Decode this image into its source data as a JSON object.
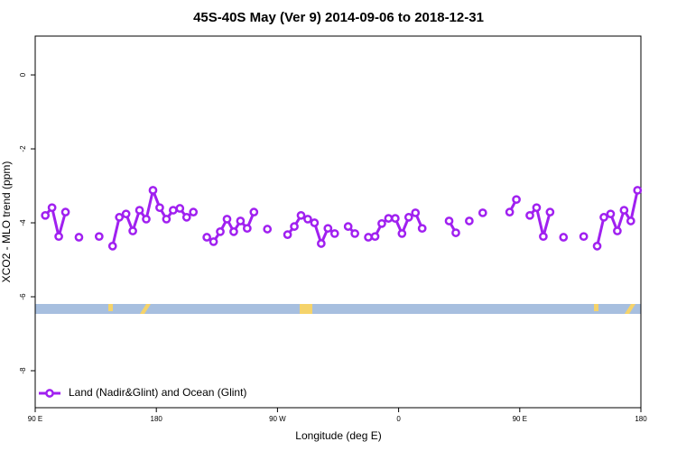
{
  "chart_data": {
    "type": "line",
    "title": "45S-40S May (Ver 9)   2014-09-06 to 2018-12-31",
    "x_label": "Longitude (deg E)",
    "y_label": "XCO2 - MLO trend (ppm)",
    "x": [
      92.5,
      97.5,
      102.5,
      107.5,
      112.5,
      117.5,
      122.5,
      127.5,
      132.5,
      137.5,
      142.5,
      147.5,
      152.5,
      157.5,
      162.5,
      167.5,
      172.5,
      177.5,
      182.5,
      187.5,
      192.5,
      197.5,
      202.5,
      207.5,
      212.5,
      217.5,
      222.5,
      227.5,
      232.5,
      237.5,
      242.5,
      247.5,
      252.5,
      257.5,
      262.5,
      267.5,
      272.5,
      277.5,
      282.5,
      287.5,
      292.5,
      297.5,
      302.5,
      307.5,
      312.5,
      317.5,
      322.5,
      327.5,
      332.5,
      337.5,
      342.5,
      347.5,
      352.5,
      357.5,
      362.5,
      367.5,
      372.5,
      377.5,
      382.5,
      387.5,
      392.5,
      397.5,
      402.5,
      407.5,
      412.5,
      417.5,
      422.5,
      427.5,
      432.5,
      437.5,
      442.5,
      447.5,
      452.5,
      457.5,
      462.5,
      467.5,
      472.5,
      477.5,
      482.5,
      487.5,
      492.5,
      497.5,
      502.5,
      507.5,
      512.5,
      517.5,
      522.5,
      527.5,
      532.5,
      537.5
    ],
    "series": [
      {
        "name": "Land (Nadir&Glint) and Ocean (Glint)",
        "color": "#a020f0",
        "values": [
          null,
          -3.8,
          -3.59,
          -4.37,
          -3.71,
          null,
          -4.39,
          null,
          null,
          -4.37,
          null,
          -4.63,
          -3.85,
          -3.76,
          -4.22,
          -3.66,
          -3.9,
          -3.12,
          -3.59,
          -3.9,
          -3.66,
          -3.61,
          -3.85,
          -3.71,
          null,
          -4.39,
          -4.51,
          -4.24,
          -3.9,
          -4.24,
          -3.95,
          -4.15,
          -3.71,
          null,
          -4.17,
          null,
          null,
          -4.32,
          -4.1,
          -3.8,
          -3.9,
          -4.0,
          -4.56,
          -4.15,
          -4.29,
          null,
          -4.1,
          -4.29,
          null,
          -4.39,
          -4.37,
          -4.02,
          -3.88,
          -3.88,
          -4.29,
          -3.85,
          -3.73,
          -4.15,
          null,
          null,
          null,
          -3.95,
          -4.27,
          null,
          -3.95,
          null,
          -3.73,
          null,
          null,
          null,
          -3.71,
          -3.37,
          null,
          -3.8,
          -3.59,
          -4.37,
          -3.71,
          null,
          -4.39,
          null,
          null,
          -4.37,
          null,
          -4.63,
          -3.85,
          -3.76,
          -4.22,
          -3.66,
          -3.95,
          -3.12
        ]
      }
    ],
    "xlim": [
      90,
      540
    ],
    "xticks": [
      {
        "value": 90,
        "label": "90 E"
      },
      180,
      {
        "value": 270,
        "label": "90 W"
      },
      {
        "value": 360,
        "label": "0"
      },
      {
        "value": 450,
        "label": "90 E"
      },
      {
        "value": 540,
        "label": "180"
      }
    ],
    "ylim": [
      -9,
      1.05
    ],
    "yticks": [
      -8,
      -6,
      -4,
      -2,
      0
    ],
    "legend": "bottom-left"
  }
}
